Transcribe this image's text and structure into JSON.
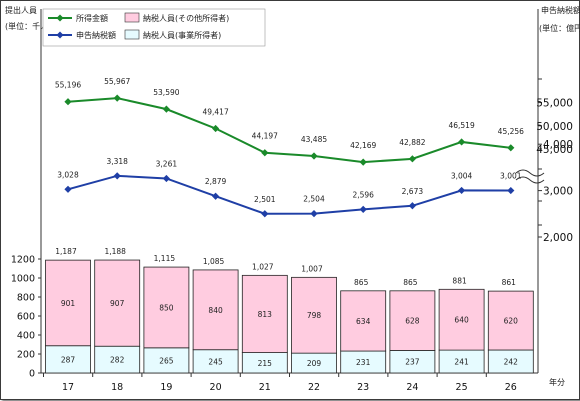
{
  "chart_data": {
    "type": "bar+line",
    "left_axis_title": "提出人員",
    "left_axis_unit": "(単位：千人)",
    "right_axis_title": "申告納税額",
    "right_axis_unit": "(単位：億円)",
    "x_axis_unit": "年分",
    "categories": [
      "17",
      "18",
      "19",
      "20",
      "21",
      "22",
      "23",
      "24",
      "25",
      "26"
    ],
    "left_ticks": [
      "0",
      "200",
      "400",
      "600",
      "800",
      "1000",
      "1200"
    ],
    "left_ylim": [
      0,
      1200
    ],
    "right_ticks_lower": [
      "2,000",
      "3,000",
      "4,000"
    ],
    "right_ticks_upper": [
      "45,000",
      "50,000",
      "55,000"
    ],
    "legend": {
      "income_line": "所得金額",
      "tax_line": "申告納税額",
      "other_bar": "納税人員(その他所得者)",
      "business_bar": "納税人員(事業所得者)"
    },
    "series": [
      {
        "name": "所得金額",
        "kind": "line",
        "color": "#1a8a2a",
        "values": [
          55196,
          55967,
          53590,
          49417,
          44197,
          43485,
          42169,
          42882,
          46519,
          45256
        ],
        "labels": [
          "55,196",
          "55,967",
          "53,590",
          "49,417",
          "44,197",
          "43,485",
          "42,169",
          "42,882",
          "46,519",
          "45,256"
        ]
      },
      {
        "name": "申告納税額",
        "kind": "line",
        "color": "#1f3fa6",
        "values": [
          3028,
          3318,
          3261,
          2879,
          2501,
          2504,
          2596,
          2673,
          3004,
          3001
        ],
        "labels": [
          "3,028",
          "3,318",
          "3,261",
          "2,879",
          "2,501",
          "2,504",
          "2,596",
          "2,673",
          "3,004",
          "3,001"
        ]
      },
      {
        "name": "納税人員(事業所得者)",
        "kind": "bar",
        "color": "#e6fbff",
        "values": [
          287,
          282,
          265,
          245,
          215,
          209,
          231,
          237,
          241,
          242
        ]
      },
      {
        "name": "納税人員(その他所得者)",
        "kind": "bar",
        "color": "#ffcce0",
        "values": [
          901,
          907,
          850,
          840,
          813,
          798,
          634,
          628,
          640,
          620
        ]
      }
    ],
    "totals": [
      "1,187",
      "1,188",
      "1,115",
      "1,085",
      "1,027",
      "1,007",
      "865",
      "865",
      "881",
      "861"
    ]
  }
}
